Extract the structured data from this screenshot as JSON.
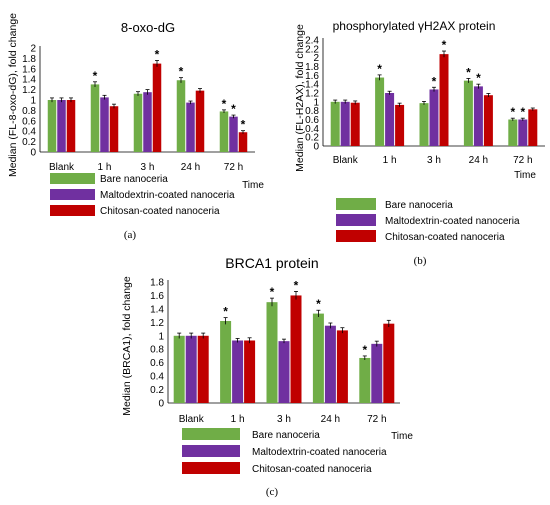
{
  "colors": {
    "series": [
      "#70ad47",
      "#7030a0",
      "#c00000"
    ],
    "error_bar": "#000000",
    "axis": "#000000"
  },
  "chart_data": [
    {
      "id": "a",
      "type": "bar",
      "title": "8-oxo-dG",
      "ylabel": "Median (FL-8-oxo-dG), fold change",
      "xlabel": "Time",
      "panel_label": "(a)",
      "categories": [
        "Blank",
        "1 h",
        "3 h",
        "24 h",
        "72 h"
      ],
      "ylim": [
        0,
        2
      ],
      "yticks": [
        "0",
        "0.2",
        "0.4",
        "0.6",
        "0.8",
        "1",
        "1.2",
        "1.4",
        "1.6",
        "1.8",
        "2"
      ],
      "legend_position": "bottom",
      "series": [
        {
          "name": "Bare nanoceria",
          "values": [
            1.0,
            1.3,
            1.12,
            1.38,
            0.78
          ],
          "errors": [
            0.04,
            0.05,
            0.04,
            0.05,
            0.03
          ],
          "significant": [
            false,
            true,
            false,
            true,
            true
          ]
        },
        {
          "name": "Maltodextrin-coated nanoceria",
          "values": [
            1.0,
            1.05,
            1.15,
            0.95,
            0.68
          ],
          "errors": [
            0.04,
            0.04,
            0.05,
            0.03,
            0.03
          ],
          "significant": [
            false,
            false,
            false,
            false,
            true
          ]
        },
        {
          "name": "Chitosan-coated nanoceria",
          "values": [
            1.0,
            0.88,
            1.7,
            1.18,
            0.38
          ],
          "errors": [
            0.04,
            0.04,
            0.06,
            0.04,
            0.03
          ],
          "significant": [
            false,
            false,
            true,
            false,
            true
          ]
        }
      ]
    },
    {
      "id": "b",
      "type": "bar",
      "title": "phosphorylated γH2AX protein",
      "ylabel": "Median (FL-H2AX), fold change",
      "xlabel": "Time",
      "panel_label": "(b)",
      "categories": [
        "Blank",
        "1 h",
        "3 h",
        "24 h",
        "72 h"
      ],
      "ylim": [
        0,
        2.4
      ],
      "yticks": [
        "0",
        "0.2",
        "0.4",
        "0.6",
        "0.8",
        "1",
        "1.2",
        "1.4",
        "1.6",
        "1.8",
        "2",
        "2.2",
        "2.4"
      ],
      "legend_position": "bottom",
      "series": [
        {
          "name": "Bare nanoceria",
          "values": [
            1.0,
            1.55,
            0.97,
            1.48,
            0.6
          ],
          "errors": [
            0.04,
            0.06,
            0.04,
            0.05,
            0.03
          ],
          "significant": [
            false,
            true,
            false,
            true,
            true
          ]
        },
        {
          "name": "Maltodextrin-coated nanoceria",
          "values": [
            1.0,
            1.2,
            1.28,
            1.35,
            0.6
          ],
          "errors": [
            0.04,
            0.04,
            0.05,
            0.05,
            0.03
          ],
          "significant": [
            false,
            false,
            true,
            true,
            true
          ]
        },
        {
          "name": "Chitosan-coated nanoceria",
          "values": [
            0.98,
            0.93,
            2.08,
            1.15,
            0.83
          ],
          "errors": [
            0.04,
            0.04,
            0.07,
            0.04,
            0.03
          ],
          "significant": [
            false,
            false,
            true,
            false,
            false
          ]
        }
      ]
    },
    {
      "id": "c",
      "type": "bar",
      "title": "BRCA1 protein",
      "ylabel": "Median (BRCA1), fold change",
      "xlabel": "Time",
      "panel_label": "(c)",
      "categories": [
        "Blank",
        "1 h",
        "3 h",
        "24 h",
        "72 h"
      ],
      "ylim": [
        0,
        1.8
      ],
      "yticks": [
        "0",
        "0.2",
        "0.4",
        "0.6",
        "0.8",
        "1",
        "1.2",
        "1.4",
        "1.6",
        "1.8"
      ],
      "legend_position": "bottom",
      "series": [
        {
          "name": "Bare nanoceria",
          "values": [
            1.0,
            1.22,
            1.5,
            1.33,
            0.67
          ],
          "errors": [
            0.04,
            0.05,
            0.06,
            0.05,
            0.03
          ],
          "significant": [
            false,
            true,
            true,
            true,
            true
          ]
        },
        {
          "name": "Maltodextrin-coated nanoceria",
          "values": [
            1.0,
            0.93,
            0.92,
            1.15,
            0.88
          ],
          "errors": [
            0.04,
            0.03,
            0.03,
            0.04,
            0.04
          ],
          "significant": [
            false,
            false,
            false,
            false,
            false
          ]
        },
        {
          "name": "Chitosan-coated nanoceria",
          "values": [
            1.0,
            0.93,
            1.6,
            1.08,
            1.18
          ],
          "errors": [
            0.04,
            0.04,
            0.06,
            0.04,
            0.05
          ],
          "significant": [
            false,
            false,
            true,
            false,
            false
          ]
        }
      ]
    }
  ]
}
